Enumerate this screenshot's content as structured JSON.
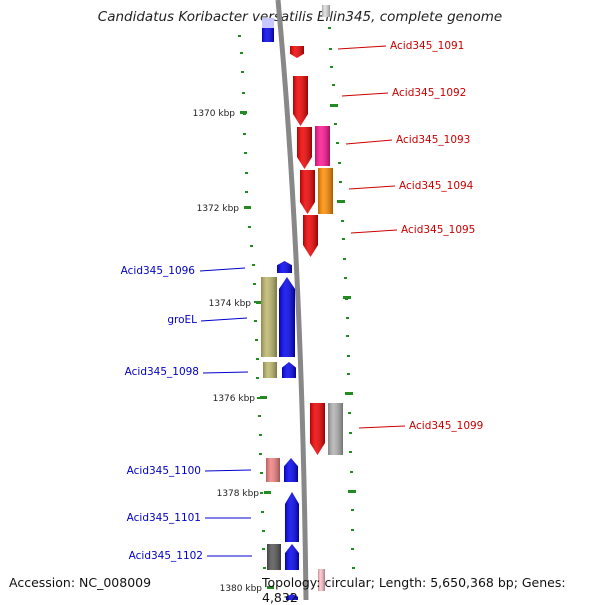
{
  "title": "Candidatus Koribacter versatilis Ellin345, complete genome",
  "footer": {
    "accession": "Accession: NC_008009",
    "topology": "Topology: circular; Length: 5,650,368 bp; Genes: 4,832"
  },
  "scale_labels": [
    "1370 kbp",
    "1372 kbp",
    "1374 kbp",
    "1376 kbp",
    "1378 kbp",
    "1380 kbp"
  ],
  "colors": {
    "forward_label": "#cc0000",
    "reverse_label": "#0000cc",
    "backbone": "#888888",
    "ticks": "#228b22"
  },
  "forward_genes": [
    {
      "label": "Acid345_1091",
      "color": "#ee0000"
    },
    {
      "label": "Acid345_1092",
      "color": "#ee0000"
    },
    {
      "label": "Acid345_1093",
      "color": "#ee0000",
      "companion_color": "#ff1493"
    },
    {
      "label": "Acid345_1094",
      "color": "#ee0000",
      "companion_color": "#ff8c00"
    },
    {
      "label": "Acid345_1095",
      "color": "#ee0000"
    },
    {
      "label": "Acid345_1099",
      "color": "#ee0000",
      "companion_color": "#b0b0b0"
    }
  ],
  "reverse_genes": [
    {
      "label": "Acid345_1096",
      "color": "#0000ee"
    },
    {
      "label": "groEL",
      "color": "#0000ee",
      "companion_color": "#bdb76b"
    },
    {
      "label": "Acid345_1098",
      "color": "#0000ee",
      "companion_color": "#bdb76b"
    },
    {
      "label": "Acid345_1100",
      "color": "#0000ee",
      "companion_color": "#f08080"
    },
    {
      "label": "Acid345_1101",
      "color": "#0000ee"
    },
    {
      "label": "Acid345_1102",
      "color": "#0000ee",
      "companion_color": "#555555"
    }
  ]
}
